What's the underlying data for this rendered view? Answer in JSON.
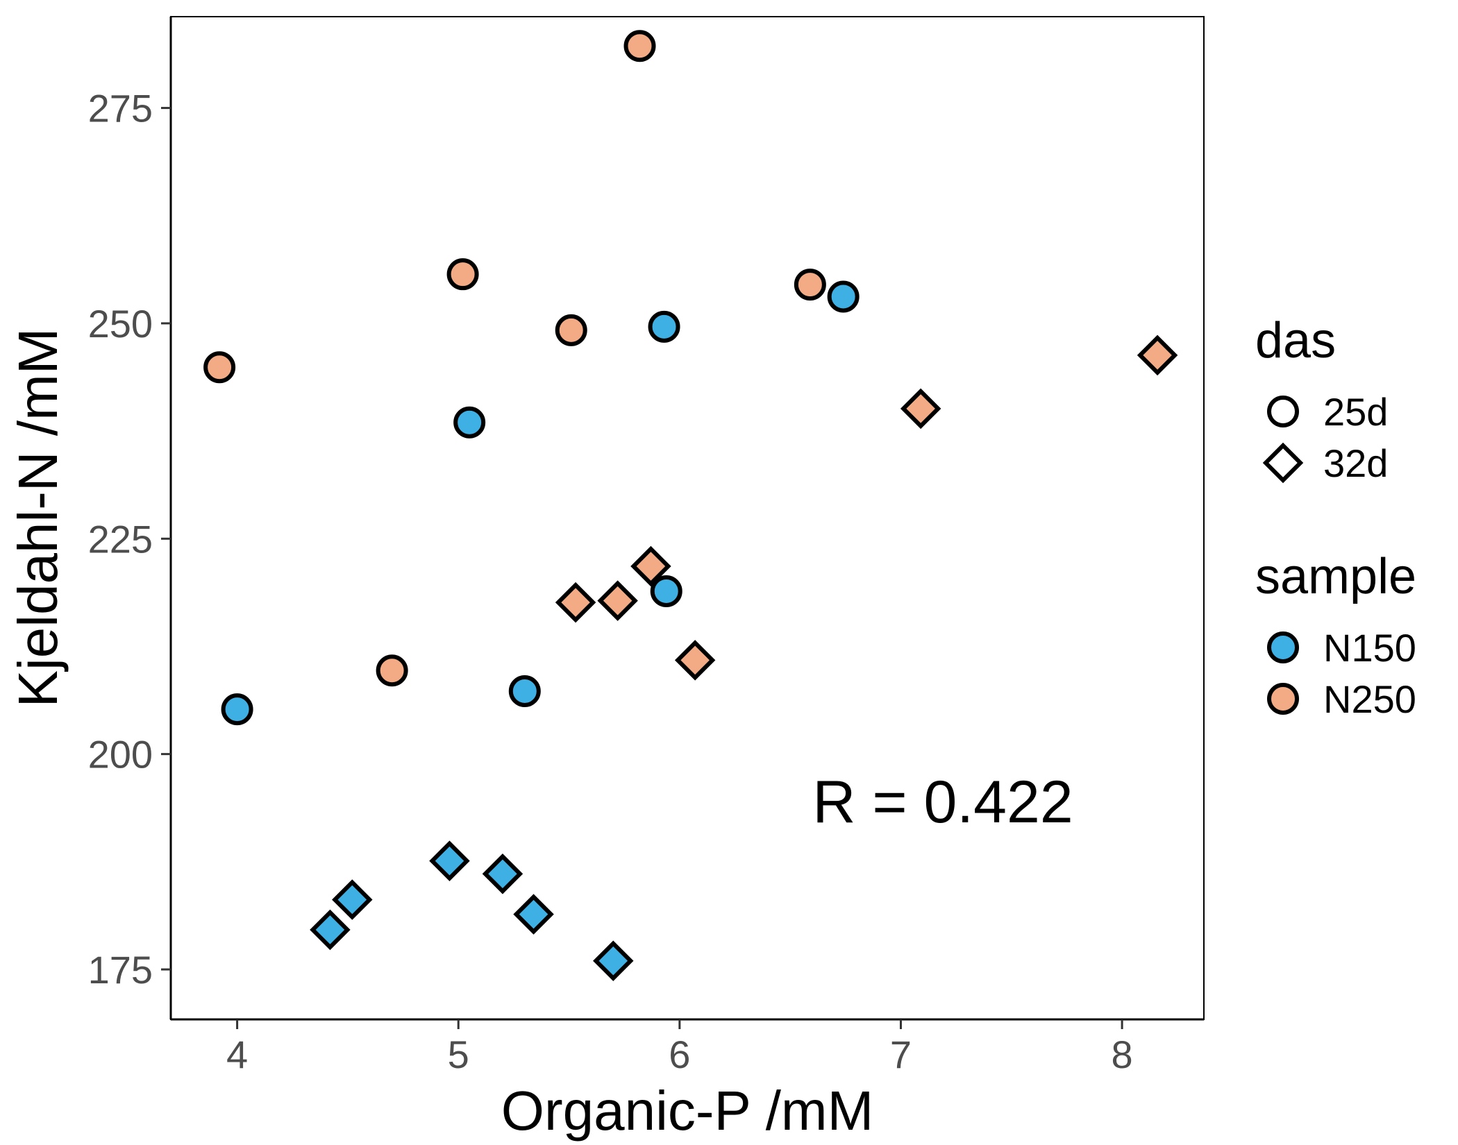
{
  "chart_data": {
    "type": "scatter",
    "xlabel": "Organic-P /mM",
    "ylabel": "Kjeldahl-N /mM",
    "xlim": [
      3.7,
      8.37
    ],
    "ylim": [
      169.2,
      285.6
    ],
    "xticks": [
      "4",
      "5",
      "6",
      "7",
      "8"
    ],
    "yticks": [
      "175",
      "200",
      "225",
      "250",
      "275"
    ],
    "grid": false,
    "legend_position": "right",
    "annotation": "R = 0.422",
    "legends": [
      {
        "title": "das",
        "kind": "shape",
        "entries": [
          {
            "label": "25d",
            "shape": "circle"
          },
          {
            "label": "32d",
            "shape": "diamond"
          }
        ]
      },
      {
        "title": "sample",
        "kind": "color",
        "entries": [
          {
            "label": "N150",
            "color": "#3fb0e4"
          },
          {
            "label": "N250",
            "color": "#f2ab84"
          }
        ]
      }
    ],
    "series": [
      {
        "sample": "N150",
        "das": "25d",
        "color": "#3fb0e4",
        "shape": "circle",
        "points": [
          [
            4.0,
            205.2
          ],
          [
            5.05,
            238.5
          ],
          [
            5.3,
            207.3
          ],
          [
            5.93,
            249.6
          ],
          [
            5.94,
            218.9
          ],
          [
            6.74,
            253.1
          ]
        ]
      },
      {
        "sample": "N250",
        "das": "25d",
        "color": "#f2ab84",
        "shape": "circle",
        "points": [
          [
            3.92,
            244.9
          ],
          [
            4.7,
            209.7
          ],
          [
            5.02,
            255.7
          ],
          [
            5.51,
            249.2
          ],
          [
            5.82,
            282.2
          ],
          [
            6.59,
            254.5
          ]
        ]
      },
      {
        "sample": "N150",
        "das": "32d",
        "color": "#3fb0e4",
        "shape": "diamond",
        "points": [
          [
            4.42,
            179.6
          ],
          [
            4.52,
            183.1
          ],
          [
            4.96,
            187.6
          ],
          [
            5.2,
            186.1
          ],
          [
            5.34,
            181.4
          ],
          [
            5.7,
            176.0
          ]
        ]
      },
      {
        "sample": "N250",
        "das": "32d",
        "color": "#f2ab84",
        "shape": "diamond",
        "points": [
          [
            5.53,
            217.6
          ],
          [
            5.72,
            217.8
          ],
          [
            5.87,
            221.8
          ],
          [
            6.07,
            210.9
          ],
          [
            7.09,
            240.1
          ],
          [
            8.16,
            246.3
          ]
        ]
      }
    ]
  }
}
